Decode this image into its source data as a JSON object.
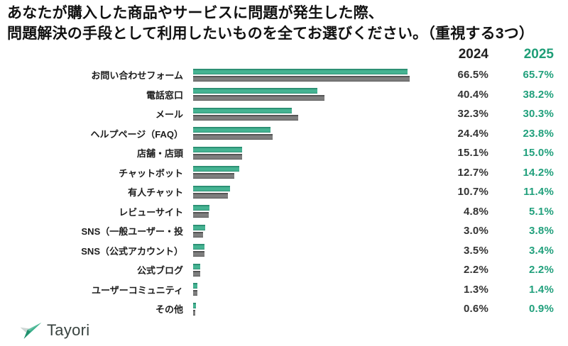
{
  "title": {
    "full": "あなたが購入した商品やサービスに問題が発生した際、問題解決の手段として利用したいものを全てお選びください。（重視する3つ）"
  },
  "chart_data": {
    "type": "bar",
    "orientation": "horizontal",
    "title": "あなたが購入した商品やサービスに問題が発生した際、問題解決の手段として利用したいものを全てお選びください。（重視する3つ）",
    "title_lines": [
      "あなたが購入した商品やサービスに問題が発生した際、",
      "問題解決の手段として利用したいものを全てお選びください。（重視する3つ）"
    ],
    "categories": [
      "お問い合わせフォーム",
      "電話窓口",
      "メール",
      "ヘルプページ（FAQ）",
      "店舗・店頭",
      "チャットボット",
      "有人チャット",
      "レビューサイト",
      "SNS（一般ユーザー・投",
      "SNS（公式アカウント）",
      "公式ブログ",
      "ユーザーコミュニティ",
      "その他"
    ],
    "series": [
      {
        "name": "2024",
        "values": [
          66.5,
          40.4,
          32.3,
          24.4,
          15.1,
          12.7,
          10.7,
          4.8,
          3.0,
          3.5,
          2.2,
          1.3,
          0.6
        ]
      },
      {
        "name": "2025",
        "values": [
          65.7,
          38.2,
          30.3,
          23.8,
          15.0,
          14.2,
          11.4,
          5.1,
          3.8,
          3.4,
          2.2,
          1.4,
          0.9
        ]
      }
    ],
    "value_suffix": "%",
    "xlim": [
      0,
      70
    ],
    "grid": false,
    "legend_position": "column-headers-top-right",
    "bar_order_per_category": [
      "2025",
      "2024"
    ],
    "colors": {
      "2024": "#7e7e7e",
      "2025": "#45b392",
      "value_2025_text": "#21a07c",
      "value_2024_text": "#333333"
    }
  },
  "footer": {
    "logo_text": "Tayori"
  }
}
